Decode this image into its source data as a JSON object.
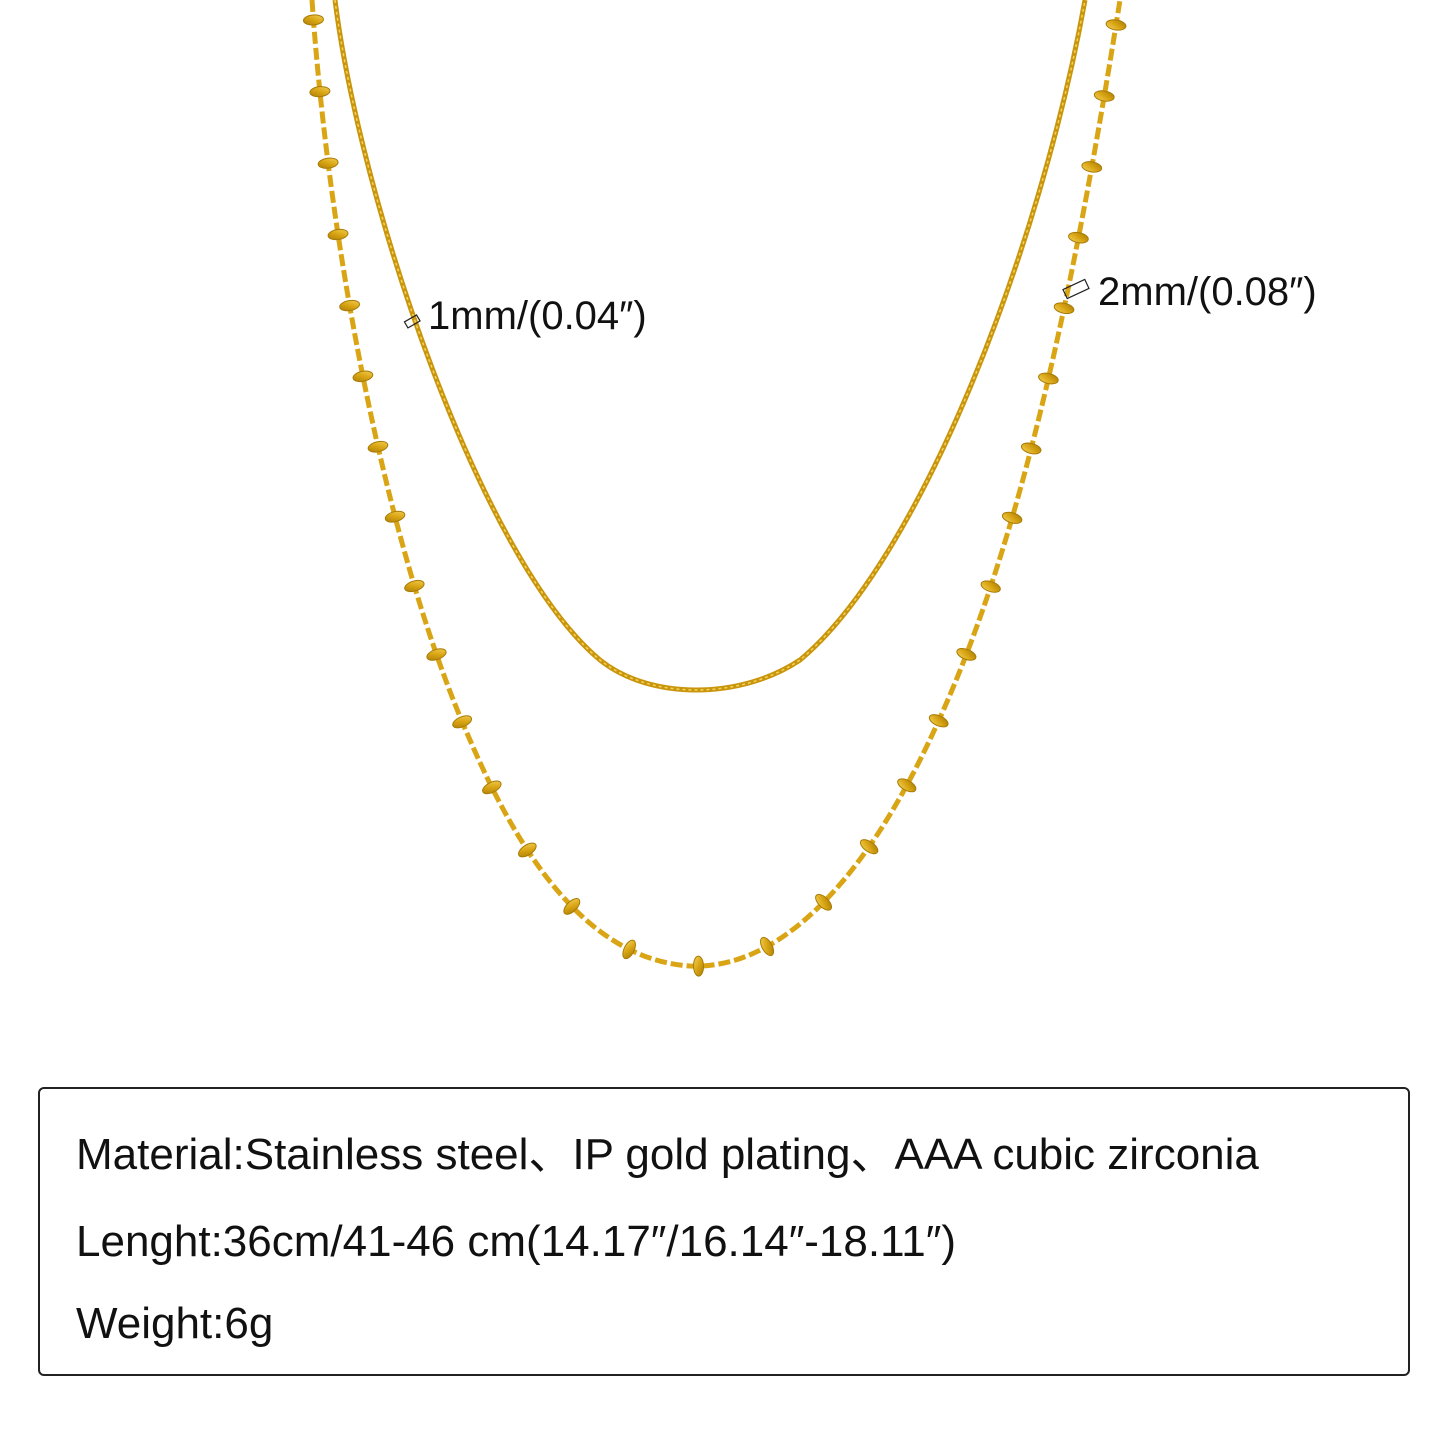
{
  "labels": {
    "thin_chain": "1mm/(0.04″)",
    "beaded_chain": "2mm/(0.08″)"
  },
  "specs": {
    "material": "Material:Stainless steel、IP gold plating、AAA cubic zirconia",
    "length": "Lenght:36cm/41-46 cm(14.17″/16.14″-18.11″)",
    "weight": "Weight:6g"
  },
  "colors": {
    "gold": "#d9a514",
    "gold_dark": "#a87b06",
    "gold_light": "#f3d25a"
  }
}
